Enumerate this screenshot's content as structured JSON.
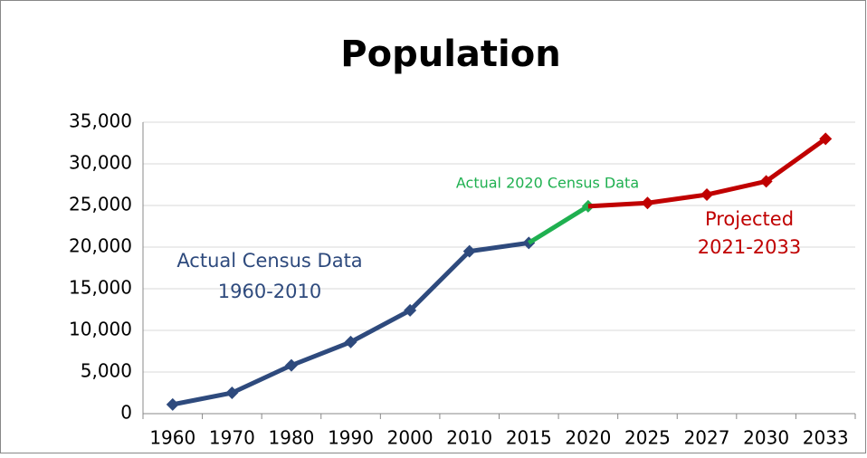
{
  "chart_data": {
    "type": "line",
    "title": "Population",
    "categories": [
      "1960",
      "1970",
      "1980",
      "1990",
      "2000",
      "2010",
      "2015",
      "2020",
      "2025",
      "2027",
      "2030",
      "2033"
    ],
    "series": [
      {
        "color": "#2e4a7d",
        "values": [
          1100,
          2500,
          5800,
          8600,
          12400,
          19500,
          20500,
          null,
          null,
          null,
          null,
          null
        ]
      },
      {
        "color": "#1fb050",
        "values": [
          null,
          null,
          null,
          null,
          null,
          null,
          null,
          24900,
          null,
          null,
          null,
          null
        ]
      },
      {
        "color": "#c00000",
        "values": [
          null,
          null,
          null,
          null,
          null,
          null,
          null,
          null,
          25300,
          26300,
          27900,
          33000
        ]
      }
    ],
    "ylim": [
      0,
      35000
    ],
    "yticks": [
      0,
      {
        "value": 5000,
        "label": "5,000"
      },
      {
        "value": 10000,
        "label": "10,000"
      },
      {
        "value": 15000,
        "label": "15,000"
      },
      {
        "value": 20000,
        "label": "20,000"
      },
      {
        "value": 25000,
        "label": "25,000"
      },
      {
        "value": 30000,
        "label": "30,000"
      },
      {
        "value": 35000,
        "label": "35,000"
      }
    ],
    "grid": true,
    "annotations": [
      {
        "lines": [
          "Actual Census Data",
          "1960-2010"
        ],
        "color": "#2e4a7d"
      },
      {
        "lines": [
          "Actual 2020 Census Data"
        ],
        "color": "#1fb050"
      },
      {
        "lines": [
          "Projected",
          "2021-2033"
        ],
        "color": "#c00000"
      }
    ]
  }
}
